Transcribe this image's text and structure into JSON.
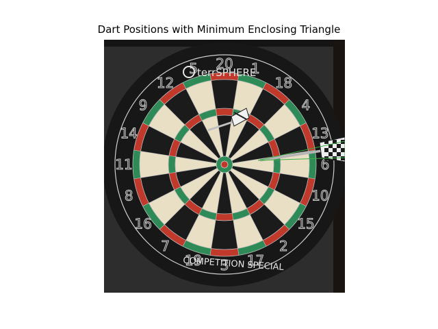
{
  "title": "Dart Positions with Minimum Enclosing Triangle",
  "photo": {
    "brand_top": "terrSPHERE",
    "brand_bottom": "COMPETITION SPECIAL",
    "board_numbers": [
      "20",
      "1",
      "18",
      "4",
      "13",
      "6",
      "10",
      "15",
      "2",
      "17",
      "3",
      "19",
      "7",
      "16",
      "8",
      "11",
      "14",
      "9",
      "12",
      "5"
    ]
  },
  "colors": {
    "red": "#c0392b",
    "green": "#2e8b57",
    "black": "#1b1b1b",
    "cream": "#e8dfc5",
    "triangle": "#3cb043"
  }
}
